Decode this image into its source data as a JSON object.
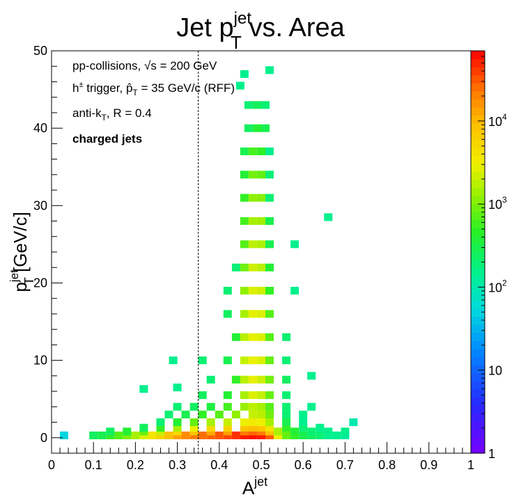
{
  "title": {
    "main": "Jet p",
    "sup": "jet",
    "sub": "T",
    "rest": " vs. Area"
  },
  "xaxis": {
    "label": "A",
    "label_sup": "jet",
    "ticks": [
      "0",
      "0.1",
      "0.2",
      "0.3",
      "0.4",
      "0.5",
      "0.6",
      "0.7",
      "0.8",
      "0.9",
      "1"
    ]
  },
  "yaxis": {
    "label_p": "p",
    "label_sup": "jet",
    "label_sub": "T",
    "label_unit": " [GeV/c]",
    "ticks": [
      "0",
      "10",
      "20",
      "30",
      "40",
      "50"
    ]
  },
  "colorbar": {
    "ticks": [
      "1",
      "10",
      "10",
      "10",
      "10"
    ],
    "tick_exps": [
      "",
      "",
      "2",
      "3",
      "4"
    ],
    "scale": "log",
    "range": [
      1,
      70000
    ]
  },
  "annotations": {
    "line1": {
      "pre": "pp-collisions, ",
      "sqrt": "√s",
      "post": " = 200 GeV"
    },
    "line2": {
      "pre": "h",
      "sup": "±",
      "mid": " trigger, ",
      "phat": "p̂",
      "sub": "T",
      "post": " = 35 GeV/c (RFF)"
    },
    "line3": {
      "pre": "anti-k",
      "sub": "T",
      "post": ", R = 0.4"
    },
    "line4": "charged jets"
  },
  "chart_data": {
    "type": "heatmap",
    "title": "Jet pT(jet) vs. Area",
    "xlabel": "A(jet)",
    "ylabel": "pT(jet) [GeV/c]",
    "xlim": [
      0,
      1
    ],
    "ylim": [
      -2,
      50
    ],
    "zscale": "log",
    "zlim": [
      1,
      70000
    ],
    "cut_line_x": 0.35,
    "bin_width_x": 0.01,
    "bin_width_y": 0.5,
    "points": [
      [
        0.03,
        0.3,
        50
      ],
      [
        0.1,
        0.3,
        250
      ],
      [
        0.12,
        0.3,
        300
      ],
      [
        0.14,
        0.3,
        500
      ],
      [
        0.16,
        0.3,
        700
      ],
      [
        0.18,
        0.3,
        1000
      ],
      [
        0.2,
        0.3,
        1500
      ],
      [
        0.22,
        0.3,
        2500
      ],
      [
        0.24,
        0.3,
        4000
      ],
      [
        0.26,
        0.3,
        6000
      ],
      [
        0.28,
        0.3,
        9000
      ],
      [
        0.3,
        0.3,
        14000
      ],
      [
        0.32,
        0.3,
        18000
      ],
      [
        0.34,
        0.3,
        22000
      ],
      [
        0.36,
        0.3,
        25000
      ],
      [
        0.38,
        0.3,
        28000
      ],
      [
        0.4,
        0.3,
        32000
      ],
      [
        0.42,
        0.3,
        38000
      ],
      [
        0.44,
        0.3,
        45000
      ],
      [
        0.46,
        0.3,
        55000
      ],
      [
        0.48,
        0.3,
        60000
      ],
      [
        0.5,
        0.3,
        55000
      ],
      [
        0.52,
        0.3,
        30000
      ],
      [
        0.54,
        0.3,
        3000
      ],
      [
        0.56,
        0.3,
        800
      ],
      [
        0.58,
        0.3,
        500
      ],
      [
        0.6,
        0.3,
        300
      ],
      [
        0.62,
        0.3,
        250
      ],
      [
        0.64,
        0.3,
        200
      ],
      [
        0.66,
        0.3,
        150
      ],
      [
        0.68,
        0.3,
        150
      ],
      [
        0.7,
        0.3,
        120
      ],
      [
        0.14,
        0.8,
        250
      ],
      [
        0.18,
        0.8,
        400
      ],
      [
        0.22,
        0.8,
        800
      ],
      [
        0.26,
        0.8,
        2000
      ],
      [
        0.3,
        0.8,
        5000
      ],
      [
        0.34,
        0.8,
        8000
      ],
      [
        0.38,
        0.8,
        12000
      ],
      [
        0.42,
        0.8,
        14000
      ],
      [
        0.46,
        0.8,
        22000
      ],
      [
        0.48,
        0.8,
        28000
      ],
      [
        0.5,
        0.8,
        22000
      ],
      [
        0.52,
        0.8,
        9000
      ],
      [
        0.54,
        0.8,
        1500
      ],
      [
        0.58,
        0.8,
        400
      ],
      [
        0.62,
        0.8,
        200
      ],
      [
        0.66,
        0.8,
        150
      ],
      [
        0.7,
        0.8,
        150
      ],
      [
        0.22,
        1.3,
        250
      ],
      [
        0.26,
        1.3,
        500
      ],
      [
        0.3,
        1.3,
        1500
      ],
      [
        0.34,
        1.3,
        3000
      ],
      [
        0.38,
        1.3,
        5000
      ],
      [
        0.42,
        1.3,
        6000
      ],
      [
        0.46,
        1.3,
        8000
      ],
      [
        0.48,
        1.3,
        9000
      ],
      [
        0.5,
        1.3,
        8000
      ],
      [
        0.52,
        1.3,
        4000
      ],
      [
        0.56,
        1.3,
        500
      ],
      [
        0.6,
        1.3,
        200
      ],
      [
        0.64,
        1.3,
        150
      ],
      [
        0.26,
        2,
        200
      ],
      [
        0.3,
        2,
        400
      ],
      [
        0.34,
        2,
        800
      ],
      [
        0.38,
        2,
        1500
      ],
      [
        0.42,
        2,
        2000
      ],
      [
        0.46,
        2,
        3000
      ],
      [
        0.48,
        2,
        3500
      ],
      [
        0.5,
        2,
        3000
      ],
      [
        0.52,
        2,
        1500
      ],
      [
        0.56,
        2,
        300
      ],
      [
        0.6,
        2,
        150
      ],
      [
        0.72,
        2,
        100
      ],
      [
        0.28,
        3,
        200
      ],
      [
        0.32,
        3,
        300
      ],
      [
        0.36,
        3,
        500
      ],
      [
        0.4,
        3,
        700
      ],
      [
        0.44,
        3,
        1200
      ],
      [
        0.48,
        3,
        2000
      ],
      [
        0.5,
        3,
        1800
      ],
      [
        0.52,
        3,
        900
      ],
      [
        0.56,
        3,
        200
      ],
      [
        0.6,
        3,
        150
      ],
      [
        0.3,
        4,
        200
      ],
      [
        0.34,
        4,
        250
      ],
      [
        0.38,
        4,
        350
      ],
      [
        0.42,
        4,
        600
      ],
      [
        0.46,
        4,
        1300
      ],
      [
        0.48,
        4,
        1800
      ],
      [
        0.5,
        4,
        1500
      ],
      [
        0.52,
        4,
        700
      ],
      [
        0.56,
        4,
        200
      ],
      [
        0.62,
        4,
        150
      ],
      [
        0.36,
        5.5,
        250
      ],
      [
        0.42,
        5.5,
        400
      ],
      [
        0.46,
        5.5,
        1500
      ],
      [
        0.48,
        5.5,
        2500
      ],
      [
        0.5,
        5.5,
        2000
      ],
      [
        0.52,
        5.5,
        800
      ],
      [
        0.56,
        5.5,
        200
      ],
      [
        0.22,
        6.3,
        150
      ],
      [
        0.3,
        6.5,
        150
      ],
      [
        0.38,
        7.5,
        200
      ],
      [
        0.44,
        7.5,
        500
      ],
      [
        0.46,
        7.5,
        1800
      ],
      [
        0.48,
        7.5,
        2800
      ],
      [
        0.5,
        7.5,
        2200
      ],
      [
        0.52,
        7.5,
        900
      ],
      [
        0.56,
        7.5,
        250
      ],
      [
        0.62,
        8,
        150
      ],
      [
        0.36,
        10,
        200
      ],
      [
        0.42,
        10,
        300
      ],
      [
        0.46,
        10,
        2000
      ],
      [
        0.48,
        10,
        3000
      ],
      [
        0.5,
        10,
        2500
      ],
      [
        0.52,
        10,
        800
      ],
      [
        0.56,
        10,
        200
      ],
      [
        0.29,
        10,
        150
      ],
      [
        0.44,
        13,
        400
      ],
      [
        0.46,
        13,
        1800
      ],
      [
        0.48,
        13,
        2800
      ],
      [
        0.5,
        13,
        2500
      ],
      [
        0.52,
        13,
        700
      ],
      [
        0.56,
        13,
        200
      ],
      [
        0.46,
        16,
        1500
      ],
      [
        0.48,
        16,
        2800
      ],
      [
        0.5,
        16,
        2500
      ],
      [
        0.52,
        16,
        700
      ],
      [
        0.42,
        16,
        250
      ],
      [
        0.46,
        19,
        1200
      ],
      [
        0.48,
        19,
        2500
      ],
      [
        0.5,
        19,
        2200
      ],
      [
        0.52,
        19,
        500
      ],
      [
        0.42,
        19,
        200
      ],
      [
        0.58,
        19,
        150
      ],
      [
        0.46,
        22,
        900
      ],
      [
        0.48,
        22,
        2200
      ],
      [
        0.5,
        22,
        1800
      ],
      [
        0.52,
        22,
        400
      ],
      [
        0.44,
        22,
        200
      ],
      [
        0.46,
        25,
        700
      ],
      [
        0.48,
        25,
        1800
      ],
      [
        0.5,
        25,
        1600
      ],
      [
        0.52,
        25,
        300
      ],
      [
        0.58,
        25,
        150
      ],
      [
        0.46,
        28,
        600
      ],
      [
        0.48,
        28,
        1500
      ],
      [
        0.5,
        28,
        1400
      ],
      [
        0.52,
        28,
        300
      ],
      [
        0.46,
        31,
        500
      ],
      [
        0.48,
        31,
        1200
      ],
      [
        0.5,
        31,
        1100
      ],
      [
        0.52,
        31,
        200
      ],
      [
        0.66,
        28.5,
        150
      ],
      [
        0.46,
        34,
        400
      ],
      [
        0.48,
        34,
        900
      ],
      [
        0.5,
        34,
        800
      ],
      [
        0.52,
        34,
        200
      ],
      [
        0.46,
        37,
        300
      ],
      [
        0.48,
        37,
        600
      ],
      [
        0.5,
        37,
        500
      ],
      [
        0.52,
        37,
        150
      ],
      [
        0.47,
        40,
        250
      ],
      [
        0.49,
        40,
        400
      ],
      [
        0.51,
        40,
        300
      ],
      [
        0.47,
        43,
        200
      ],
      [
        0.49,
        43,
        250
      ],
      [
        0.51,
        43,
        200
      ],
      [
        0.52,
        47.5,
        150
      ],
      [
        0.46,
        47,
        150
      ],
      [
        0.45,
        45.5,
        150
      ]
    ]
  }
}
